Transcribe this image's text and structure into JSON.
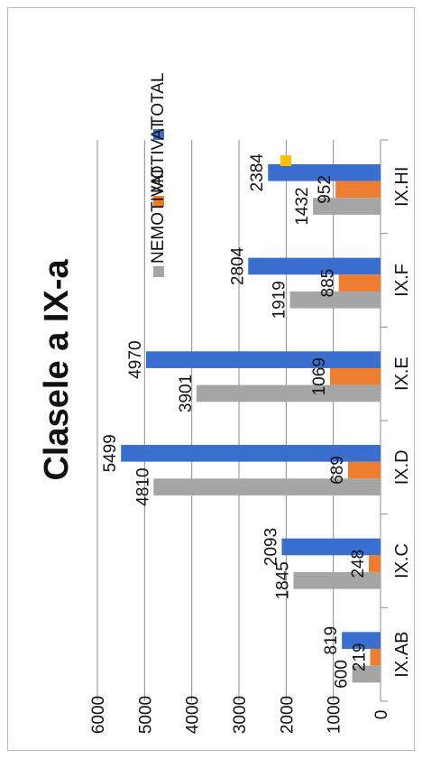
{
  "chart_data": {
    "type": "bar",
    "orientation": "horizontal",
    "title": "Clasele a IX-a",
    "categories": [
      "IX.AB",
      "IX.C",
      "IX.D",
      "IX.E",
      "IX.F",
      "IX.HI"
    ],
    "series": [
      {
        "name": "TOTAL",
        "color": "#3a6fd0",
        "values": [
          819,
          2093,
          5499,
          4970,
          2804,
          2384
        ]
      },
      {
        "name": "MOTIVAT",
        "color": "#ed7d31",
        "values": [
          219,
          248,
          689,
          1069,
          885,
          952
        ]
      },
      {
        "name": "NEMOTIVAT",
        "color": "#a5a5a5",
        "values": [
          600,
          1845,
          4810,
          3901,
          1919,
          1432
        ]
      }
    ],
    "extra_legend_marker": {
      "color": "#ffc000"
    },
    "value_axis": {
      "ticks": [
        0,
        1000,
        2000,
        3000,
        4000,
        5000,
        6000
      ],
      "range": [
        0,
        6000
      ]
    },
    "gridlines": true,
    "legend_placement": "top"
  }
}
